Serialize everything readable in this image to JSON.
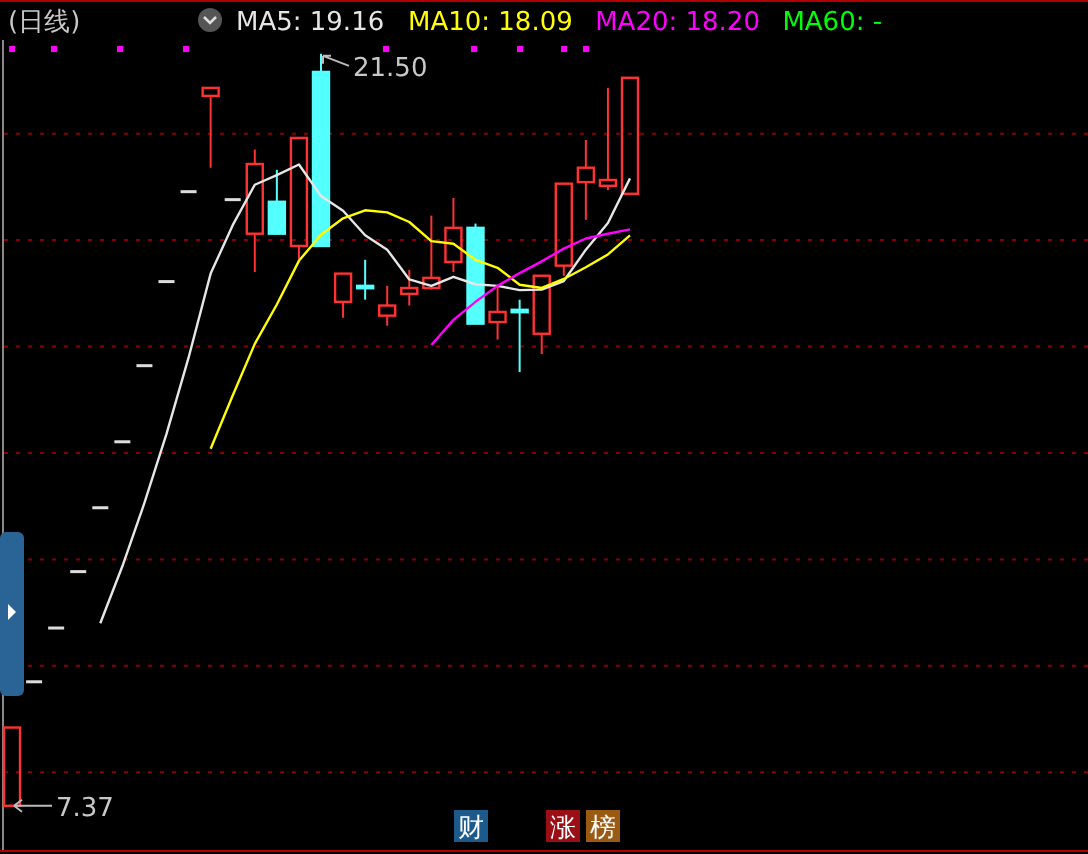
{
  "chart_data": {
    "type": "candlestick",
    "title": "(日线)",
    "categories": [
      null,
      null,
      null,
      null,
      null,
      null,
      null,
      null,
      null,
      null,
      null,
      null,
      null,
      null,
      null,
      null,
      null,
      null,
      null,
      null,
      null,
      null,
      null,
      null,
      null,
      null,
      null,
      null,
      null
    ],
    "ohlc": [
      [
        7.37,
        8.84,
        7.37,
        8.84
      ],
      [
        9.7,
        9.7,
        9.7,
        9.7
      ],
      [
        10.71,
        10.71,
        10.71,
        10.71
      ],
      [
        11.77,
        11.77,
        11.77,
        11.77
      ],
      [
        12.97,
        12.97,
        12.97,
        12.97
      ],
      [
        14.21,
        14.21,
        14.21,
        14.21
      ],
      [
        15.64,
        15.64,
        15.64,
        15.64
      ],
      [
        17.22,
        17.22,
        17.22,
        17.22
      ],
      [
        18.91,
        18.91,
        18.91,
        18.91
      ],
      [
        20.71,
        20.86,
        19.36,
        20.86
      ],
      [
        18.76,
        18.76,
        18.76,
        18.76
      ],
      [
        18.12,
        19.7,
        17.4,
        19.43
      ],
      [
        18.72,
        19.32,
        18.12,
        18.12
      ],
      [
        17.89,
        19.92,
        17.63,
        19.92
      ],
      [
        21.16,
        21.5,
        17.89,
        17.89
      ],
      [
        16.84,
        17.37,
        16.54,
        17.37
      ],
      [
        17.14,
        17.63,
        16.88,
        17.14
      ],
      [
        16.58,
        17.14,
        16.39,
        16.77
      ],
      [
        16.99,
        17.44,
        16.77,
        17.1
      ],
      [
        17.1,
        18.46,
        17.07,
        17.29
      ],
      [
        17.59,
        18.79,
        17.4,
        18.23
      ],
      [
        18.23,
        18.31,
        16.43,
        16.43
      ],
      [
        16.46,
        17.14,
        16.13,
        16.65
      ],
      [
        16.69,
        16.88,
        15.52,
        16.69
      ],
      [
        16.24,
        17.33,
        15.86,
        17.33
      ],
      [
        17.52,
        19.06,
        17.33,
        19.06
      ],
      [
        19.09,
        19.88,
        18.38,
        19.36
      ],
      [
        19.02,
        20.86,
        18.94,
        19.13
      ],
      [
        18.87,
        21.05,
        18.87,
        21.05
      ]
    ],
    "series": [
      {
        "name": "MA5: 19.16",
        "type": "line",
        "color": "#e6e6e6",
        "values": [
          null,
          null,
          null,
          null,
          10.8,
          11.87,
          13.06,
          14.36,
          15.79,
          17.37,
          18.28,
          19.04,
          19.22,
          19.42,
          18.83,
          18.55,
          18.09,
          17.82,
          17.26,
          17.14,
          17.31,
          17.17,
          17.14,
          17.06,
          17.07,
          17.23,
          17.82,
          18.32,
          19.16
        ]
      },
      {
        "name": "MA10: 18.09",
        "type": "line",
        "color": "#ffff00",
        "values": [
          null,
          null,
          null,
          null,
          null,
          null,
          null,
          null,
          null,
          14.08,
          15.08,
          16.05,
          16.79,
          17.61,
          18.1,
          18.41,
          18.56,
          18.52,
          18.34,
          17.98,
          17.93,
          17.63,
          17.48,
          17.16,
          17.1,
          17.27,
          17.49,
          17.73,
          18.09
        ]
      },
      {
        "name": "MA20: 18.20",
        "type": "line",
        "color": "#ff00ff",
        "values": [
          null,
          null,
          null,
          null,
          null,
          null,
          null,
          null,
          null,
          null,
          null,
          null,
          null,
          null,
          null,
          null,
          null,
          null,
          null,
          16.03,
          16.5,
          16.84,
          17.14,
          17.38,
          17.6,
          17.84,
          18.03,
          18.12,
          18.2
        ]
      },
      {
        "name": "MA60: -",
        "type": "line",
        "color": "#00ff00",
        "values": [
          null,
          null,
          null,
          null,
          null,
          null,
          null,
          null,
          null,
          null,
          null,
          null,
          null,
          null,
          null,
          null,
          null,
          null,
          null,
          null,
          null,
          null,
          null,
          null,
          null,
          null,
          null,
          null,
          null
        ]
      }
    ],
    "ylim": [
      6.52,
      21.76
    ],
    "yticks": [
      {
        "value": 8,
        "label": null
      },
      {
        "value": 10,
        "label": null
      },
      {
        "value": 12,
        "label": null
      },
      {
        "value": 14,
        "label": null
      },
      {
        "value": 16,
        "label": null
      },
      {
        "value": 18,
        "label": null
      },
      {
        "value": 20,
        "label": null
      }
    ],
    "grid": "y",
    "legend": "top left",
    "annotations": [
      "21.50",
      "7.37",
      "财",
      "涨",
      "榜"
    ]
  }
}
